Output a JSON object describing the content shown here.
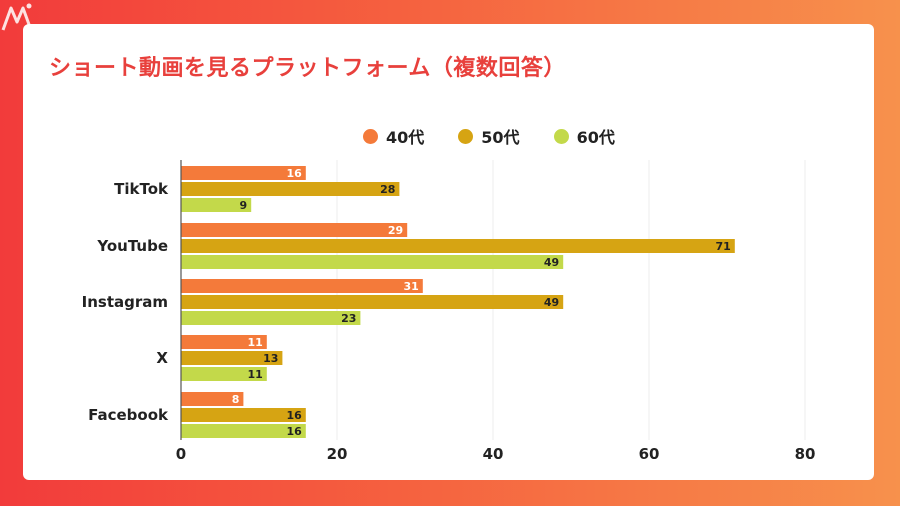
{
  "title": "ショート動画を見るプラットフォーム（複数回答）",
  "legend": [
    {
      "label": "40代",
      "color": "#f47a3a"
    },
    {
      "label": "50代",
      "color": "#d6a413"
    },
    {
      "label": "60代",
      "color": "#c3d94a"
    }
  ],
  "chart_data": {
    "type": "bar",
    "orientation": "horizontal",
    "categories": [
      "TikTok",
      "YouTube",
      "Instagram",
      "X",
      "Facebook"
    ],
    "series": [
      {
        "name": "40代",
        "color": "#f47a3a",
        "values": [
          16,
          29,
          31,
          11,
          8
        ]
      },
      {
        "name": "50代",
        "color": "#d6a413",
        "values": [
          28,
          71,
          49,
          13,
          16
        ]
      },
      {
        "name": "60代",
        "color": "#c3d94a",
        "values": [
          9,
          49,
          23,
          11,
          16
        ]
      }
    ],
    "xlim": [
      0,
      80
    ],
    "xticks": [
      0,
      20,
      40,
      60,
      80
    ],
    "grid": true,
    "legend_position": "top"
  }
}
